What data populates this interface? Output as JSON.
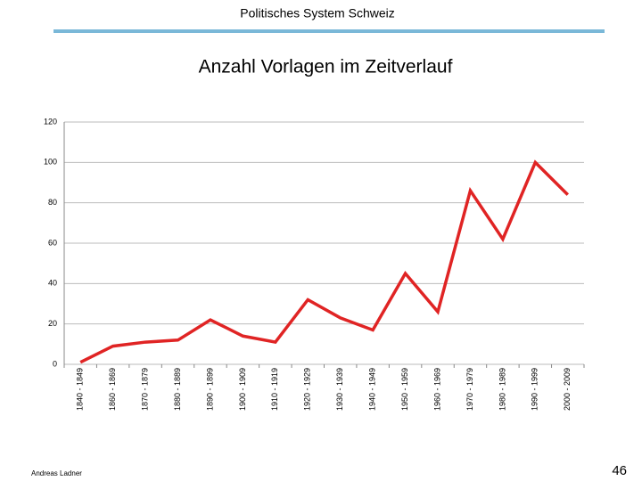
{
  "header": {
    "title": "Politisches System Schweiz"
  },
  "footer": {
    "author": "Andreas Ladner",
    "page_number": 46
  },
  "chart_data": {
    "type": "line",
    "title": "Anzahl Vorlagen im Zeitverlauf",
    "categories": [
      "1840 - 1849",
      "1860 - 1869",
      "1870 - 1879",
      "1880 - 1889",
      "1890 - 1899",
      "1900 - 1909",
      "1910 - 1919",
      "1920 - 1929",
      "1930 - 1939",
      "1940 - 1949",
      "1950 - 1959",
      "1960 - 1969",
      "1970 - 1979",
      "1980 - 1989",
      "1990 - 1999",
      "2000 - 2009"
    ],
    "values": [
      1,
      9,
      11,
      12,
      22,
      14,
      11,
      32,
      23,
      17,
      45,
      26,
      86,
      62,
      100,
      84
    ],
    "color": "#e02424",
    "ylim": [
      0,
      120
    ],
    "yticks": [
      0,
      20,
      40,
      60,
      80,
      100,
      120
    ],
    "grid": true
  }
}
